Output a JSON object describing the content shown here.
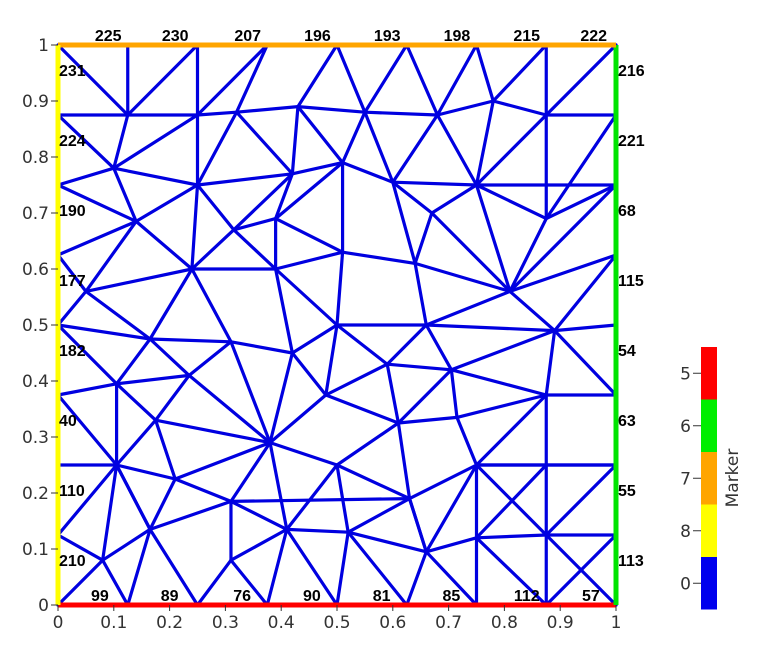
{
  "chart_data": {
    "type": "mesh",
    "xlim": [
      0,
      1
    ],
    "ylim": [
      0,
      1
    ],
    "x_ticks": [
      "0",
      "0.1",
      "0.2",
      "0.3",
      "0.4",
      "0.5",
      "0.6",
      "0.7",
      "0.8",
      "0.9",
      "1"
    ],
    "y_ticks": [
      "0",
      "0.1",
      "0.2",
      "0.3",
      "0.4",
      "0.5",
      "0.6",
      "0.7",
      "0.8",
      "0.9",
      "1"
    ],
    "boundary_labels": {
      "top": [
        {
          "x": 0.09,
          "text": "225"
        },
        {
          "x": 0.21,
          "text": "230"
        },
        {
          "x": 0.34,
          "text": "207"
        },
        {
          "x": 0.465,
          "text": "196"
        },
        {
          "x": 0.59,
          "text": "193"
        },
        {
          "x": 0.715,
          "text": "198"
        },
        {
          "x": 0.84,
          "text": "215"
        },
        {
          "x": 0.96,
          "text": "222"
        }
      ],
      "bottom": [
        {
          "x": 0.075,
          "text": "99"
        },
        {
          "x": 0.2,
          "text": "89"
        },
        {
          "x": 0.33,
          "text": "76"
        },
        {
          "x": 0.455,
          "text": "90"
        },
        {
          "x": 0.58,
          "text": "81"
        },
        {
          "x": 0.705,
          "text": "85"
        },
        {
          "x": 0.84,
          "text": "112"
        },
        {
          "x": 0.955,
          "text": "57"
        }
      ],
      "left": [
        {
          "y": 0.955,
          "text": "231"
        },
        {
          "y": 0.83,
          "text": "224"
        },
        {
          "y": 0.705,
          "text": "190"
        },
        {
          "y": 0.58,
          "text": "177"
        },
        {
          "y": 0.455,
          "text": "182"
        },
        {
          "y": 0.33,
          "text": "40"
        },
        {
          "y": 0.205,
          "text": "110"
        },
        {
          "y": 0.08,
          "text": "210"
        }
      ],
      "right": [
        {
          "y": 0.955,
          "text": "216"
        },
        {
          "y": 0.83,
          "text": "221"
        },
        {
          "y": 0.705,
          "text": "68"
        },
        {
          "y": 0.58,
          "text": "115"
        },
        {
          "y": 0.455,
          "text": "54"
        },
        {
          "y": 0.33,
          "text": "63"
        },
        {
          "y": 0.205,
          "text": "55"
        },
        {
          "y": 0.08,
          "text": "113"
        }
      ]
    },
    "boundary_colors": {
      "bottom": "#ff0000",
      "right": "#00e400",
      "top": "#ffa500",
      "left": "#ffff00",
      "interior": "#0000e0"
    },
    "colorbar": {
      "title": "Marker",
      "entries": [
        {
          "label": "5",
          "color": "#ff0000"
        },
        {
          "label": "6",
          "color": "#00ee00"
        },
        {
          "label": "7",
          "color": "#ffa500"
        },
        {
          "label": "8",
          "color": "#ffff00"
        },
        {
          "label": "0",
          "color": "#0000ee"
        }
      ]
    },
    "nodes": [
      [
        0,
        0
      ],
      [
        0.125,
        0
      ],
      [
        0.25,
        0
      ],
      [
        0.375,
        0
      ],
      [
        0.5,
        0
      ],
      [
        0.625,
        0
      ],
      [
        0.75,
        0
      ],
      [
        0.875,
        0
      ],
      [
        1,
        0
      ],
      [
        1,
        0.125
      ],
      [
        1,
        0.25
      ],
      [
        1,
        0.375
      ],
      [
        1,
        0.5
      ],
      [
        1,
        0.625
      ],
      [
        1,
        0.75
      ],
      [
        1,
        0.875
      ],
      [
        1,
        1
      ],
      [
        0.875,
        1
      ],
      [
        0.75,
        1
      ],
      [
        0.625,
        1
      ],
      [
        0.5,
        1
      ],
      [
        0.375,
        1
      ],
      [
        0.25,
        1
      ],
      [
        0.125,
        1
      ],
      [
        0,
        1
      ],
      [
        0,
        0.875
      ],
      [
        0,
        0.75
      ],
      [
        0,
        0.625
      ],
      [
        0,
        0.5
      ],
      [
        0,
        0.375
      ],
      [
        0,
        0.25
      ],
      [
        0,
        0.125
      ],
      [
        0.125,
        0.875
      ],
      [
        0.25,
        0.875
      ],
      [
        0.32,
        0.88
      ],
      [
        0.43,
        0.89
      ],
      [
        0.55,
        0.88
      ],
      [
        0.68,
        0.875
      ],
      [
        0.78,
        0.9
      ],
      [
        0.875,
        0.875
      ],
      [
        0.1,
        0.78
      ],
      [
        0.25,
        0.75
      ],
      [
        0.42,
        0.77
      ],
      [
        0.51,
        0.79
      ],
      [
        0.6,
        0.755
      ],
      [
        0.75,
        0.75
      ],
      [
        0.875,
        0.69
      ],
      [
        0.14,
        0.685
      ],
      [
        0.315,
        0.67
      ],
      [
        0.39,
        0.69
      ],
      [
        0.67,
        0.7
      ],
      [
        0.05,
        0.56
      ],
      [
        0.24,
        0.6
      ],
      [
        0.39,
        0.6
      ],
      [
        0.51,
        0.63
      ],
      [
        0.64,
        0.61
      ],
      [
        0.81,
        0.56
      ],
      [
        0.165,
        0.475
      ],
      [
        0.31,
        0.47
      ],
      [
        0.42,
        0.45
      ],
      [
        0.5,
        0.5
      ],
      [
        0.66,
        0.5
      ],
      [
        0.89,
        0.49
      ],
      [
        0.105,
        0.395
      ],
      [
        0.235,
        0.41
      ],
      [
        0.48,
        0.375
      ],
      [
        0.59,
        0.43
      ],
      [
        0.705,
        0.42
      ],
      [
        0.875,
        0.375
      ],
      [
        0.175,
        0.33
      ],
      [
        0.38,
        0.29
      ],
      [
        0.61,
        0.325
      ],
      [
        0.715,
        0.335
      ],
      [
        0.105,
        0.25
      ],
      [
        0.21,
        0.225
      ],
      [
        0.5,
        0.25
      ],
      [
        0.75,
        0.25
      ],
      [
        0.875,
        0.25
      ],
      [
        0.31,
        0.185
      ],
      [
        0.63,
        0.19
      ],
      [
        0.165,
        0.135
      ],
      [
        0.31,
        0.08
      ],
      [
        0.41,
        0.135
      ],
      [
        0.52,
        0.13
      ],
      [
        0.66,
        0.095
      ],
      [
        0.75,
        0.12
      ],
      [
        0.875,
        0.125
      ],
      [
        0.08,
        0.08
      ]
    ],
    "edges": [
      [
        23,
        32
      ],
      [
        22,
        32
      ],
      [
        22,
        33
      ],
      [
        21,
        33
      ],
      [
        21,
        34
      ],
      [
        20,
        35
      ],
      [
        20,
        36
      ],
      [
        19,
        36
      ],
      [
        19,
        37
      ],
      [
        18,
        37
      ],
      [
        18,
        38
      ],
      [
        17,
        38
      ],
      [
        17,
        39
      ],
      [
        16,
        39
      ],
      [
        24,
        32
      ],
      [
        25,
        32
      ],
      [
        32,
        33
      ],
      [
        33,
        34
      ],
      [
        34,
        35
      ],
      [
        35,
        36
      ],
      [
        36,
        37
      ],
      [
        37,
        38
      ],
      [
        38,
        39
      ],
      [
        39,
        15
      ],
      [
        25,
        40
      ],
      [
        32,
        40
      ],
      [
        33,
        41
      ],
      [
        34,
        41
      ],
      [
        33,
        40
      ],
      [
        34,
        42
      ],
      [
        35,
        42
      ],
      [
        35,
        43
      ],
      [
        36,
        43
      ],
      [
        36,
        44
      ],
      [
        37,
        44
      ],
      [
        37,
        45
      ],
      [
        38,
        45
      ],
      [
        39,
        45
      ],
      [
        39,
        46
      ],
      [
        15,
        46
      ],
      [
        16,
        15
      ],
      [
        40,
        41
      ],
      [
        41,
        42
      ],
      [
        42,
        43
      ],
      [
        43,
        44
      ],
      [
        44,
        45
      ],
      [
        45,
        14
      ],
      [
        46,
        14
      ],
      [
        15,
        14
      ],
      [
        45,
        46
      ],
      [
        26,
        40
      ],
      [
        26,
        47
      ],
      [
        40,
        47
      ],
      [
        41,
        47
      ],
      [
        41,
        48
      ],
      [
        41,
        52
      ],
      [
        42,
        48
      ],
      [
        42,
        49
      ],
      [
        43,
        49
      ],
      [
        43,
        54
      ],
      [
        44,
        50
      ],
      [
        44,
        55
      ],
      [
        45,
        50
      ],
      [
        45,
        56
      ],
      [
        46,
        56
      ],
      [
        14,
        56
      ],
      [
        14,
        13
      ],
      [
        47,
        27
      ],
      [
        47,
        51
      ],
      [
        47,
        52
      ],
      [
        48,
        49
      ],
      [
        48,
        52
      ],
      [
        48,
        53
      ],
      [
        49,
        53
      ],
      [
        49,
        54
      ],
      [
        50,
        55
      ],
      [
        50,
        56
      ],
      [
        54,
        55
      ],
      [
        55,
        56
      ],
      [
        56,
        13
      ],
      [
        27,
        51
      ],
      [
        26,
        27
      ],
      [
        51,
        52
      ],
      [
        52,
        53
      ],
      [
        53,
        54
      ],
      [
        51,
        28
      ],
      [
        51,
        57
      ],
      [
        52,
        57
      ],
      [
        52,
        58
      ],
      [
        53,
        59
      ],
      [
        53,
        60
      ],
      [
        54,
        60
      ],
      [
        55,
        61
      ],
      [
        56,
        61
      ],
      [
        56,
        62
      ],
      [
        13,
        62
      ],
      [
        13,
        12
      ],
      [
        28,
        57
      ],
      [
        57,
        58
      ],
      [
        58,
        59
      ],
      [
        59,
        60
      ],
      [
        60,
        61
      ],
      [
        61,
        62
      ],
      [
        62,
        12
      ],
      [
        60,
        65
      ],
      [
        60,
        66
      ],
      [
        61,
        66
      ],
      [
        61,
        67
      ],
      [
        62,
        67
      ],
      [
        62,
        68
      ],
      [
        12,
        11
      ],
      [
        62,
        11
      ],
      [
        28,
        63
      ],
      [
        57,
        63
      ],
      [
        57,
        64
      ],
      [
        58,
        64
      ],
      [
        58,
        70
      ],
      [
        59,
        70
      ],
      [
        59,
        65
      ],
      [
        65,
        70
      ],
      [
        65,
        66
      ],
      [
        66,
        67
      ],
      [
        67,
        68
      ],
      [
        68,
        11
      ],
      [
        29,
        28
      ],
      [
        29,
        63
      ],
      [
        63,
        64
      ],
      [
        63,
        69
      ],
      [
        64,
        69
      ],
      [
        64,
        70
      ],
      [
        69,
        70
      ],
      [
        65,
        71
      ],
      [
        66,
        71
      ],
      [
        67,
        71
      ],
      [
        67,
        72
      ],
      [
        68,
        72
      ],
      [
        68,
        77
      ],
      [
        68,
        76
      ],
      [
        11,
        10
      ],
      [
        29,
        73
      ],
      [
        30,
        29
      ],
      [
        63,
        73
      ],
      [
        69,
        73
      ],
      [
        69,
        74
      ],
      [
        70,
        74
      ],
      [
        70,
        75
      ],
      [
        71,
        75
      ],
      [
        71,
        72
      ],
      [
        72,
        76
      ],
      [
        71,
        79
      ],
      [
        75,
        79
      ],
      [
        76,
        79
      ],
      [
        76,
        77
      ],
      [
        77,
        10
      ],
      [
        30,
        73
      ],
      [
        73,
        74
      ],
      [
        74,
        78
      ],
      [
        70,
        78
      ],
      [
        70,
        82
      ],
      [
        75,
        82
      ],
      [
        75,
        83
      ],
      [
        79,
        83
      ],
      [
        79,
        84
      ],
      [
        76,
        84
      ],
      [
        76,
        85
      ],
      [
        77,
        85
      ],
      [
        77,
        86
      ],
      [
        10,
        86
      ],
      [
        10,
        9
      ],
      [
        76,
        86
      ],
      [
        76,
        10
      ],
      [
        31,
        73
      ],
      [
        30,
        31
      ],
      [
        73,
        80
      ],
      [
        74,
        80
      ],
      [
        78,
        80
      ],
      [
        78,
        81
      ],
      [
        78,
        82
      ],
      [
        82,
        81
      ],
      [
        82,
        83
      ],
      [
        83,
        84
      ],
      [
        84,
        85
      ],
      [
        85,
        86
      ],
      [
        86,
        9
      ],
      [
        85,
        6
      ],
      [
        86,
        7
      ],
      [
        9,
        8
      ],
      [
        9,
        7
      ],
      [
        31,
        87
      ],
      [
        31,
        0
      ],
      [
        87,
        0
      ],
      [
        87,
        1
      ],
      [
        87,
        73
      ],
      [
        87,
        80
      ],
      [
        80,
        1
      ],
      [
        80,
        2
      ],
      [
        81,
        2
      ],
      [
        81,
        3
      ],
      [
        82,
        3
      ],
      [
        82,
        4
      ],
      [
        83,
        4
      ],
      [
        83,
        5
      ],
      [
        84,
        5
      ],
      [
        84,
        6
      ],
      [
        85,
        7
      ],
      [
        86,
        8
      ],
      [
        0,
        1
      ],
      [
        1,
        2
      ],
      [
        2,
        3
      ],
      [
        3,
        4
      ],
      [
        4,
        5
      ],
      [
        5,
        6
      ],
      [
        6,
        7
      ],
      [
        7,
        8
      ],
      [
        79,
        84
      ],
      [
        73,
        80
      ],
      [
        78,
        79
      ]
    ]
  }
}
